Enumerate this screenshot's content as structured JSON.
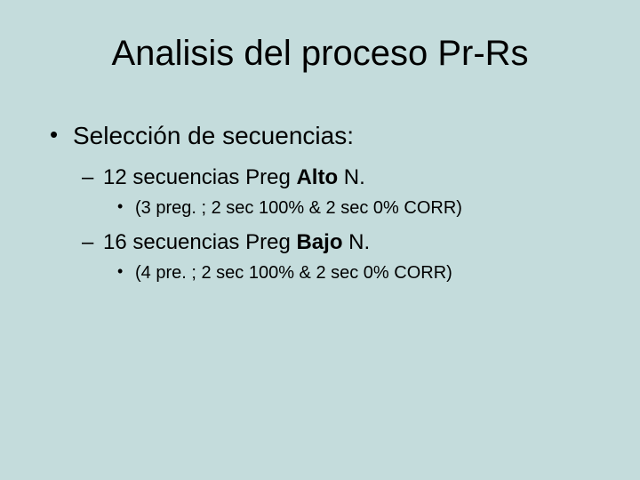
{
  "background_color": "#c4dcdc",
  "text_color": "#000000",
  "font_family": "Arial",
  "title": {
    "text": "Analisis del proceso Pr-Rs",
    "fontsize": 40
  },
  "bullets": {
    "l1": {
      "text": "Selección de secuencias:",
      "fontsize": 28
    },
    "l2a_pre": "12 secuencias Preg ",
    "l2a_bold": "Alto",
    "l2a_post": " N.",
    "l3a": "(3 preg. ; 2 sec 100% & 2 sec 0% CORR)",
    "l2b_pre": "16 secuencias Preg ",
    "l2b_bold": "Bajo",
    "l2b_post": " N.",
    "l3b": "(4 pre. ; 2 sec 100% & 2 sec 0% CORR)",
    "l2_fontsize": 24,
    "l3_fontsize": 20
  }
}
